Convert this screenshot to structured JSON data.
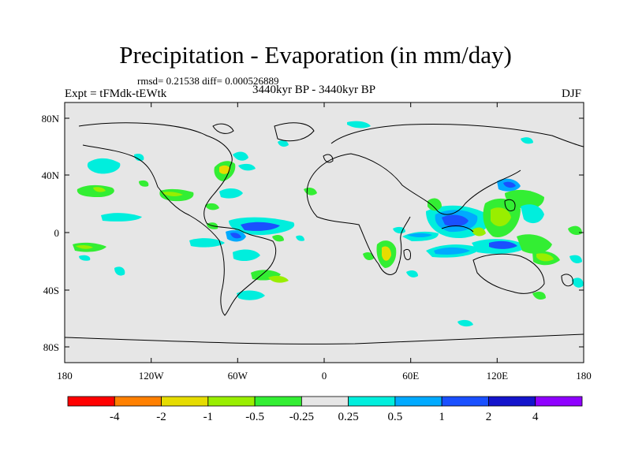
{
  "title": "Precipitation - Evaporation (in mm/day)",
  "stats": "rmsd= 0.21538 diff= 0.000526889",
  "expt": "Expt = tFMdk-tEWtk",
  "period": "3440kyr BP - 3440kyr BP",
  "season": "DJF",
  "map": {
    "background": "#e6e6e6",
    "lat_labels": [
      "80N",
      "40N",
      "0",
      "40S",
      "80S"
    ],
    "lon_labels": [
      "180",
      "120W",
      "60W",
      "0",
      "60E",
      "120E",
      "180"
    ]
  },
  "colorbar": {
    "colors": [
      "#ff0000",
      "#ff8000",
      "#e6dc00",
      "#99ee00",
      "#33ee33",
      "#e6e6e6",
      "#00eedd",
      "#00aaff",
      "#1a50ff",
      "#1414cc",
      "#8f00ff"
    ],
    "labels": [
      "-4",
      "-2",
      "-1",
      "-0.5",
      "-0.25",
      "0.25",
      "0.5",
      "1",
      "2",
      "4"
    ]
  }
}
